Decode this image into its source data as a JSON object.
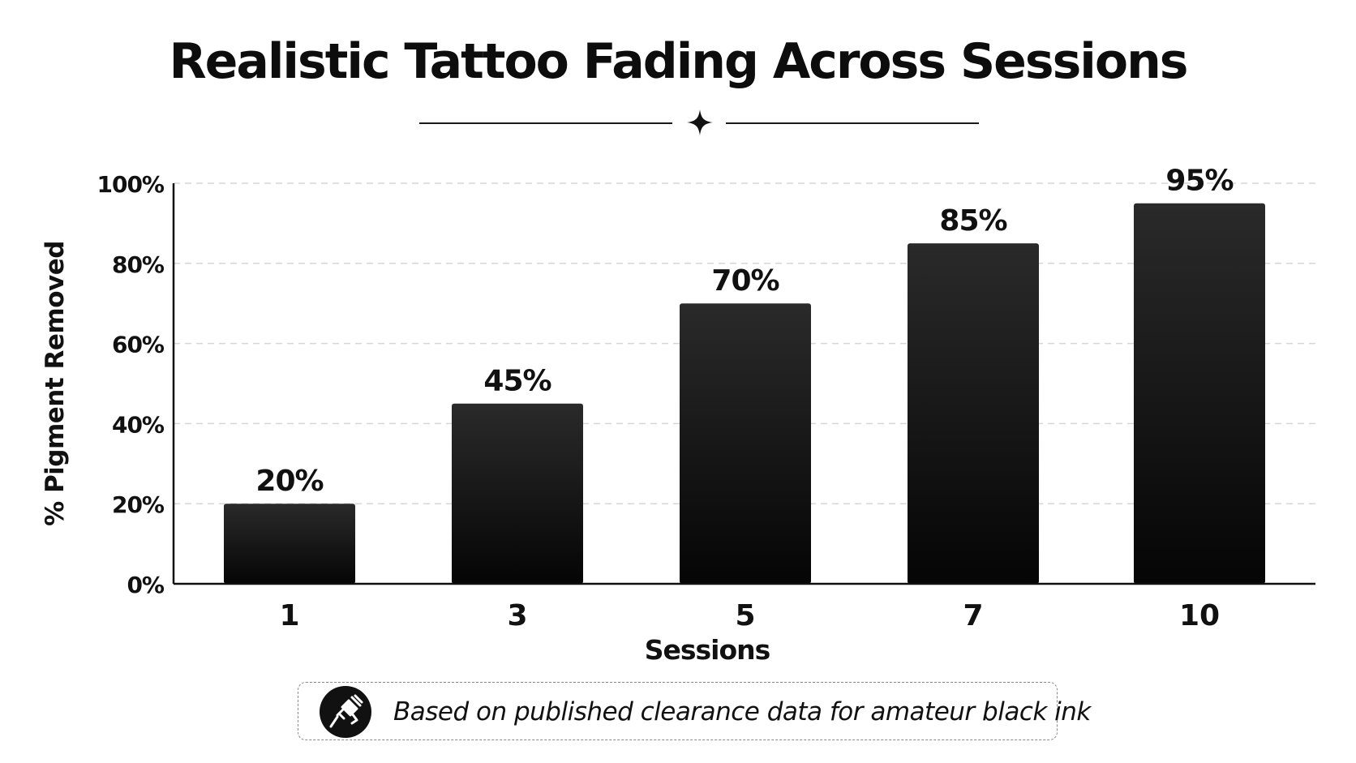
{
  "chart_data": {
    "type": "bar",
    "title": "Realistic Tattoo Fading Across Sessions",
    "xlabel": "Sessions",
    "ylabel": "% Pigment Removed",
    "categories": [
      "1",
      "3",
      "5",
      "7",
      "10"
    ],
    "values": [
      20,
      45,
      70,
      85,
      95
    ],
    "value_labels": [
      "20%",
      "45%",
      "70%",
      "85%",
      "95%"
    ],
    "ylim": [
      0,
      100
    ],
    "yticks": [
      0,
      20,
      40,
      60,
      80,
      100
    ],
    "ytick_labels": [
      "0%",
      "20%",
      "40%",
      "60%",
      "80%",
      "100%"
    ],
    "grid": "horizontal dashed",
    "legend": "none",
    "bar_color": "#161616"
  },
  "footnote": {
    "text": "Based on published clearance data for amateur black ink",
    "icon": "tattoo-machine-icon"
  },
  "decoration": {
    "divider_icon": "four-point-star-icon"
  }
}
